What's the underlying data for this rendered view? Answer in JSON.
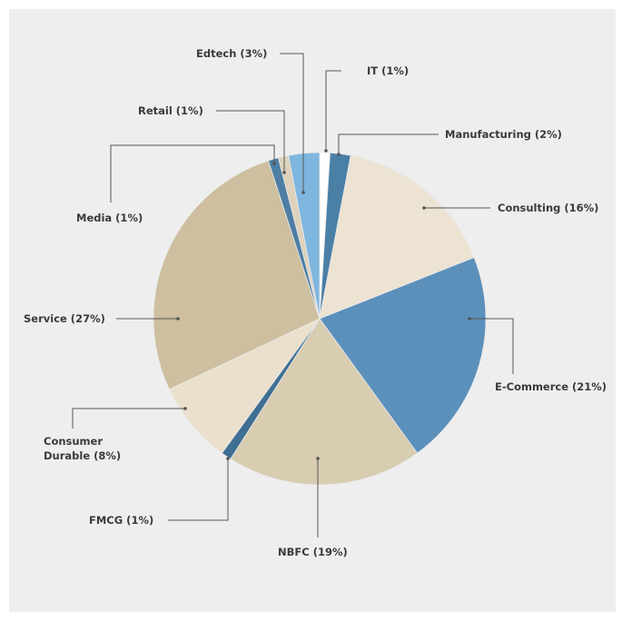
{
  "chart_data": {
    "type": "pie",
    "title": "",
    "slices": [
      {
        "label": "IT (1%)",
        "value": 1,
        "color": "#ffffff"
      },
      {
        "label": "Manufacturing (2%)",
        "value": 2,
        "color": "#4a7fa6"
      },
      {
        "label": "Consulting (16%)",
        "value": 16,
        "color": "#ece3d3"
      },
      {
        "label": "E-Commerce (21%)",
        "value": 21,
        "color": "#5b90bb"
      },
      {
        "label": "NBFC (19%)",
        "value": 19,
        "color": "#d8ccb1"
      },
      {
        "label": "FMCG (1%)",
        "value": 1,
        "color": "#3f6f92"
      },
      {
        "label": "Consumer Durable (8%)",
        "value": 8,
        "color": "#ebe0cd"
      },
      {
        "label": "Service (27%)",
        "value": 27,
        "color": "#cdbf9f"
      },
      {
        "label": "Media (1%)",
        "value": 1,
        "color": "#4e7ea3"
      },
      {
        "label": "Retail (1%)",
        "value": 1,
        "color": "#ddd2bb"
      },
      {
        "label": "Edtech (3%)",
        "value": 3,
        "color": "#7fb6df"
      }
    ],
    "legend_placement": "callouts"
  }
}
